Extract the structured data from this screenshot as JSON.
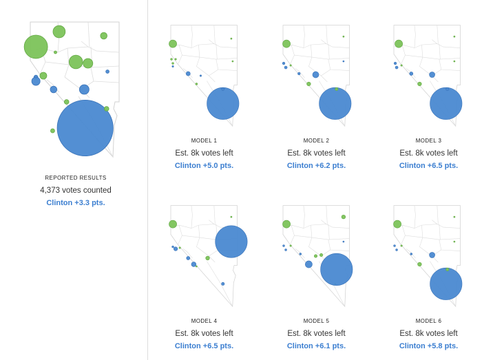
{
  "colors": {
    "clinton": "#4a89d1",
    "trump": "#7cc35a",
    "clinton_stroke": "#3a73b8",
    "trump_stroke": "#63a845",
    "margin_text": "#3b7ed0"
  },
  "chart_data": [
    {
      "type": "bubble-map",
      "name": "reported",
      "label": "REPORTED RESULTS",
      "votes_text": "4,373 votes counted",
      "margin_text": "Clinton +3.3 pts.",
      "bubbles": [
        {
          "party": "trump",
          "r": 0.126
        },
        {
          "party": "trump",
          "r": 0.066
        },
        {
          "party": "trump",
          "r": 0.036
        },
        {
          "party": "trump",
          "r": 0.015
        },
        {
          "party": "trump",
          "r": 0.073
        },
        {
          "party": "trump",
          "r": 0.052
        },
        {
          "party": "clinton",
          "r": 0.021
        },
        {
          "party": "trump",
          "r": 0.037
        },
        {
          "party": "clinton",
          "r": 0.045
        },
        {
          "party": "clinton",
          "r": 0.018
        },
        {
          "party": "clinton",
          "r": 0.036
        },
        {
          "party": "clinton",
          "r": 0.052
        },
        {
          "party": "trump",
          "r": 0.025
        },
        {
          "party": "trump",
          "r": 0.022
        },
        {
          "party": "clinton",
          "r": 0.301
        },
        {
          "party": "trump",
          "r": 0.025
        }
      ]
    },
    {
      "type": "bubble-map",
      "name": "model-1",
      "label": "MODEL 1",
      "votes_text": "Est. 8k votes left",
      "margin_text": "Clinton +5.0 pts.",
      "bubbles": [
        {
          "party": "trump",
          "r": 0.055
        },
        {
          "party": "trump",
          "r": 0.014
        },
        {
          "party": "trump",
          "r": 0.014
        },
        {
          "party": "trump",
          "r": 0.012
        },
        {
          "party": "trump",
          "r": 0.01
        },
        {
          "party": "clinton",
          "r": 0.012
        },
        {
          "party": "clinton",
          "r": 0.03
        },
        {
          "party": "clinton",
          "r": 0.012
        },
        {
          "party": "trump",
          "r": 0.014
        },
        {
          "party": "trump",
          "r": 0.01
        },
        {
          "party": "clinton",
          "r": 0.23
        },
        {
          "party": "clinton",
          "r": 0.02
        }
      ]
    },
    {
      "type": "bubble-map",
      "name": "model-2",
      "label": "MODEL 2",
      "votes_text": "Est. 8k votes left",
      "margin_text": "Clinton +6.2 pts.",
      "bubbles": [
        {
          "party": "trump",
          "r": 0.055
        },
        {
          "party": "clinton",
          "r": 0.018
        },
        {
          "party": "clinton",
          "r": 0.02
        },
        {
          "party": "trump",
          "r": 0.012
        },
        {
          "party": "clinton",
          "r": 0.018
        },
        {
          "party": "clinton",
          "r": 0.045
        },
        {
          "party": "trump",
          "r": 0.028
        },
        {
          "party": "trump",
          "r": 0.01
        },
        {
          "party": "clinton",
          "r": 0.01
        },
        {
          "party": "clinton",
          "r": 0.23
        },
        {
          "party": "trump",
          "r": 0.022
        }
      ]
    },
    {
      "type": "bubble-map",
      "name": "model-3",
      "label": "MODEL 3",
      "votes_text": "Est. 8k votes left",
      "margin_text": "Clinton +6.5 pts.",
      "bubbles": [
        {
          "party": "trump",
          "r": 0.055
        },
        {
          "party": "clinton",
          "r": 0.018
        },
        {
          "party": "clinton",
          "r": 0.02
        },
        {
          "party": "trump",
          "r": 0.012
        },
        {
          "party": "clinton",
          "r": 0.025
        },
        {
          "party": "clinton",
          "r": 0.04
        },
        {
          "party": "trump",
          "r": 0.028
        },
        {
          "party": "trump",
          "r": 0.01
        },
        {
          "party": "trump",
          "r": 0.01
        },
        {
          "party": "clinton",
          "r": 0.23
        },
        {
          "party": "clinton",
          "r": 0.022
        }
      ]
    },
    {
      "type": "bubble-map",
      "name": "model-4",
      "label": "MODEL 4",
      "votes_text": "Est. 8k votes left",
      "margin_text": "Clinton +6.5 pts.",
      "bubbles": [
        {
          "party": "trump",
          "r": 0.055
        },
        {
          "party": "clinton",
          "r": 0.028
        },
        {
          "party": "clinton",
          "r": 0.014
        },
        {
          "party": "trump",
          "r": 0.012
        },
        {
          "party": "clinton",
          "r": 0.025
        },
        {
          "party": "clinton",
          "r": 0.034
        },
        {
          "party": "trump",
          "r": 0.028
        },
        {
          "party": "trump",
          "r": 0.01
        },
        {
          "party": "trump",
          "r": 0.01
        },
        {
          "party": "clinton",
          "r": 0.23
        },
        {
          "party": "clinton",
          "r": 0.022
        }
      ]
    },
    {
      "type": "bubble-map",
      "name": "model-5",
      "label": "MODEL 5",
      "votes_text": "Est. 8k votes left",
      "margin_text": "Clinton +6.1 pts.",
      "bubbles": [
        {
          "party": "trump",
          "r": 0.055
        },
        {
          "party": "clinton",
          "r": 0.014
        },
        {
          "party": "clinton",
          "r": 0.014
        },
        {
          "party": "trump",
          "r": 0.012
        },
        {
          "party": "clinton",
          "r": 0.014
        },
        {
          "party": "trump",
          "r": 0.022
        },
        {
          "party": "clinton",
          "r": 0.05
        },
        {
          "party": "trump",
          "r": 0.028
        },
        {
          "party": "clinton",
          "r": 0.01
        },
        {
          "party": "trump",
          "r": 0.01
        },
        {
          "party": "clinton",
          "r": 0.23
        },
        {
          "party": "trump",
          "r": 0.022
        }
      ]
    },
    {
      "type": "bubble-map",
      "name": "model-6",
      "label": "MODEL 6",
      "votes_text": "Est. 8k votes left",
      "margin_text": "Clinton +5.8 pts.",
      "bubbles": [
        {
          "party": "trump",
          "r": 0.055
        },
        {
          "party": "clinton",
          "r": 0.014
        },
        {
          "party": "clinton",
          "r": 0.014
        },
        {
          "party": "trump",
          "r": 0.012
        },
        {
          "party": "clinton",
          "r": 0.014
        },
        {
          "party": "clinton",
          "r": 0.04
        },
        {
          "party": "trump",
          "r": 0.028
        },
        {
          "party": "trump",
          "r": 0.01
        },
        {
          "party": "trump",
          "r": 0.01
        },
        {
          "party": "clinton",
          "r": 0.23
        },
        {
          "party": "trump",
          "r": 0.022
        }
      ]
    }
  ]
}
